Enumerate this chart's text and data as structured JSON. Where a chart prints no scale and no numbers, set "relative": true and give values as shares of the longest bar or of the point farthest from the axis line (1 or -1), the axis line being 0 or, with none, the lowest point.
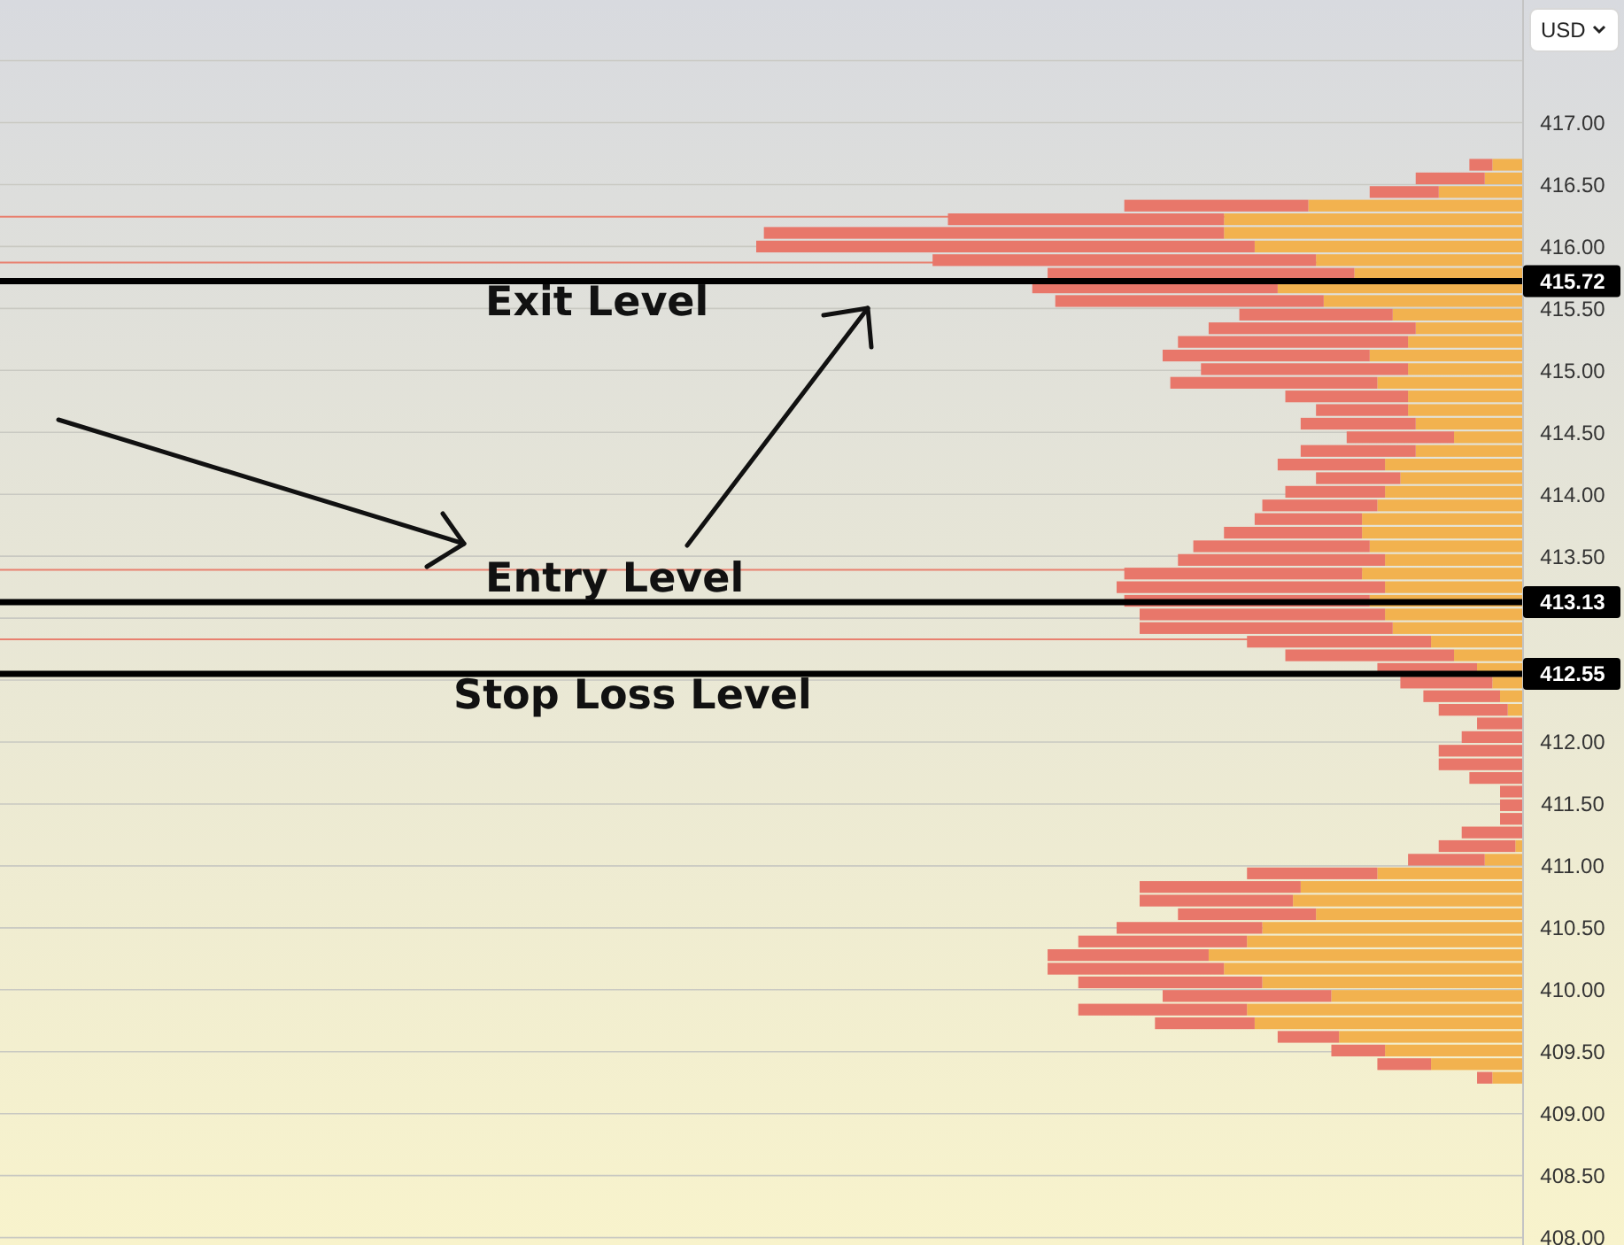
{
  "chart_data": {
    "type": "bar",
    "orientation": "horizontal",
    "stacked": true,
    "relative": true,
    "x": [
      416.66,
      416.55,
      416.44,
      416.33,
      416.22,
      416.11,
      416.0,
      415.89,
      415.78,
      415.67,
      415.56,
      415.45,
      415.34,
      415.23,
      415.12,
      415.01,
      414.9,
      414.79,
      414.68,
      414.57,
      414.46,
      414.35,
      414.24,
      414.13,
      414.02,
      413.91,
      413.8,
      413.69,
      413.58,
      413.47,
      413.36,
      413.25,
      413.14,
      413.03,
      412.92,
      412.81,
      412.7,
      412.59,
      412.48,
      412.37,
      412.26,
      412.15,
      412.04,
      411.93,
      411.82,
      411.71,
      411.6,
      411.49,
      411.38,
      411.27,
      411.16,
      411.05,
      410.94,
      410.83,
      410.72,
      410.61,
      410.5,
      410.39,
      410.28,
      410.17,
      410.06,
      409.95,
      409.84,
      409.73,
      409.62,
      409.51,
      409.4,
      409.29
    ],
    "series": [
      {
        "color": "#f2b24f",
        "values": [
          0.04,
          0.05,
          0.11,
          0.28,
          0.39,
          0.39,
          0.35,
          0.27,
          0.22,
          0.32,
          0.26,
          0.17,
          0.14,
          0.15,
          0.2,
          0.15,
          0.19,
          0.15,
          0.15,
          0.14,
          0.09,
          0.14,
          0.18,
          0.16,
          0.18,
          0.19,
          0.21,
          0.21,
          0.2,
          0.18,
          0.21,
          0.18,
          0.2,
          0.18,
          0.17,
          0.12,
          0.09,
          0.06,
          0.04,
          0.03,
          0.02,
          0,
          0,
          0,
          0,
          0,
          0,
          0,
          0,
          0,
          0.01,
          0.05,
          0.19,
          0.29,
          0.3,
          0.27,
          0.34,
          0.36,
          0.41,
          0.39,
          0.34,
          0.25,
          0.36,
          0.35,
          0.24,
          0.18,
          0.12,
          0.04
        ]
      },
      {
        "color": "#e8776a",
        "values": [
          0.03,
          0.09,
          0.09,
          0.24,
          0.36,
          0.6,
          0.65,
          0.5,
          0.4,
          0.32,
          0.35,
          0.2,
          0.27,
          0.3,
          0.27,
          0.27,
          0.27,
          0.16,
          0.12,
          0.15,
          0.14,
          0.15,
          0.14,
          0.11,
          0.13,
          0.15,
          0.14,
          0.18,
          0.23,
          0.27,
          0.31,
          0.35,
          0.32,
          0.32,
          0.33,
          0.24,
          0.22,
          0.13,
          0.12,
          0.1,
          0.09,
          0.06,
          0.08,
          0.11,
          0.11,
          0.07,
          0.03,
          0.03,
          0.03,
          0.08,
          0.1,
          0.1,
          0.17,
          0.21,
          0.2,
          0.18,
          0.19,
          0.22,
          0.21,
          0.23,
          0.24,
          0.22,
          0.22,
          0.13,
          0.08,
          0.07,
          0.07,
          0.02
        ]
      }
    ],
    "ylim": [
      407.94,
      417.99
    ],
    "yticks": [
      {
        "value": 408,
        "label": "408.00"
      },
      {
        "value": 408.5,
        "label": "408.50"
      },
      {
        "value": 409,
        "label": "409.00"
      },
      {
        "value": 409.5,
        "label": "409.50"
      },
      {
        "value": 410,
        "label": "410.00"
      },
      {
        "value": 410.5,
        "label": "410.50"
      },
      {
        "value": 411,
        "label": "411.00"
      },
      {
        "value": 411.5,
        "label": "411.50"
      },
      {
        "value": 412,
        "label": "412.00"
      },
      {
        "value": 412.5,
        "label": null
      },
      {
        "value": 413,
        "label": null
      },
      {
        "value": 413.5,
        "label": "413.50"
      },
      {
        "value": 414,
        "label": "414.00"
      },
      {
        "value": 414.5,
        "label": "414.50"
      },
      {
        "value": 415,
        "label": "415.00"
      },
      {
        "value": 415.5,
        "label": "415.50"
      },
      {
        "value": 416,
        "label": "416.00"
      },
      {
        "value": 416.5,
        "label": "416.50"
      },
      {
        "value": 417,
        "label": "417.00"
      },
      {
        "value": 417.5,
        "label": null
      }
    ],
    "grid": "y",
    "ref_lines": [
      {
        "axis": "y",
        "value": 416.24,
        "color": "#e8806f"
      },
      {
        "axis": "y",
        "value": 415.87,
        "color": "#e8806f"
      },
      {
        "axis": "y",
        "value": 413.39,
        "color": "#e8806f"
      },
      {
        "axis": "y",
        "value": 412.83,
        "color": "#e8806f"
      },
      {
        "axis": "y",
        "value": 415.72,
        "label": "415.72",
        "color": "#000000"
      },
      {
        "axis": "y",
        "value": 413.13,
        "label": "413.13",
        "color": "#000000"
      },
      {
        "axis": "y",
        "value": 412.55,
        "label": "412.55",
        "color": "#000000"
      }
    ],
    "annotations": [
      "Exit Level",
      "Entry Level",
      "Stop Loss Level",
      "USD"
    ]
  }
}
